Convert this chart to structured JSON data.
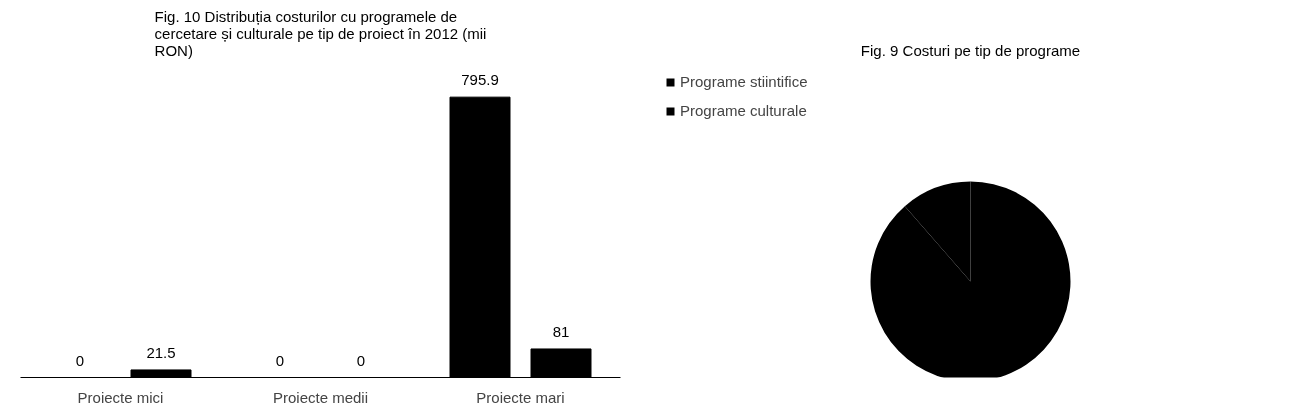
{
  "chart_data": [
    {
      "type": "bar",
      "title": "Fig. 10 Distribuția costurilor cu programele de cercetare și culturale pe tip de proiect în 2012 (mii RON)",
      "categories": [
        "Proiecte mici",
        "Proiecte medii",
        "Proiecte mari"
      ],
      "series": [
        {
          "color": "#000000",
          "values": [
            0,
            0,
            795.9
          ]
        },
        {
          "color": "#000000",
          "values": [
            21.5,
            0,
            81
          ]
        }
      ],
      "data_labels": true,
      "tick_labels": "x",
      "grid": false
    },
    {
      "type": "pie",
      "title": "Fig. 9 Costuri pe tip de programe",
      "categories": [
        "Programe stiintifice",
        "Programe culturale"
      ],
      "values": [
        88.6,
        11.4
      ],
      "colors": [
        "#000000",
        "#000000"
      ],
      "legend": "top left"
    }
  ]
}
